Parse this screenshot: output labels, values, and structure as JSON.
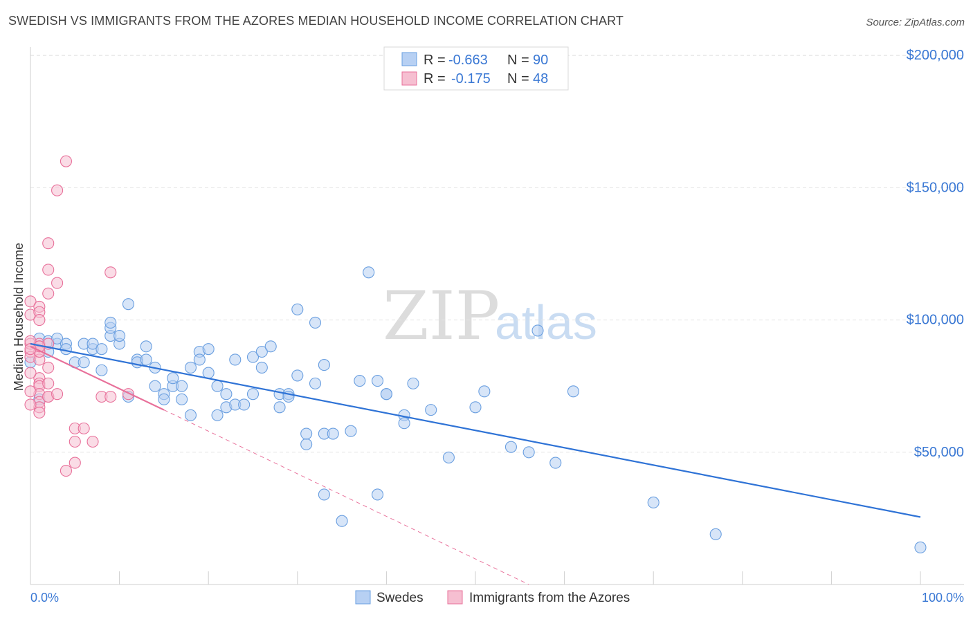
{
  "title": "SWEDISH VS IMMIGRANTS FROM THE AZORES MEDIAN HOUSEHOLD INCOME CORRELATION CHART",
  "source": "Source: ZipAtlas.com",
  "watermark": {
    "zip": "ZIP",
    "atlas": "atlas"
  },
  "colors": {
    "blue": "#6a9fe0",
    "blue_fill": "#b7d0f3",
    "blue_line": "#2f73d6",
    "pink": "#e8709a",
    "pink_fill": "#f6bfd1",
    "axis_text": "#3a78d4"
  },
  "legend_stats": [
    {
      "r_label": "R =",
      "r_value": "-0.663",
      "n_label": "N =",
      "n_value": "90",
      "color": "blue"
    },
    {
      "r_label": "R =",
      "r_value": "-0.175",
      "n_label": "N =",
      "n_value": "48",
      "color": "pink"
    }
  ],
  "chart_data": {
    "type": "scatter",
    "title": "SWEDISH VS IMMIGRANTS FROM THE AZORES MEDIAN HOUSEHOLD INCOME CORRELATION CHART",
    "xlabel": "",
    "ylabel": "Median Household Income",
    "x_tick_labels": [
      "0.0%",
      "100.0%"
    ],
    "y_ticks": [
      {
        "value": 50000,
        "label": "$50,000"
      },
      {
        "value": 100000,
        "label": "$100,000"
      },
      {
        "value": 150000,
        "label": "$150,000"
      },
      {
        "value": 200000,
        "label": "$200,000"
      }
    ],
    "xlim": [
      0,
      100
    ],
    "ylim": [
      0,
      205000
    ],
    "series": [
      {
        "name": "Swedes",
        "color": "blue",
        "trend": {
          "x0": 0,
          "y0": 91000,
          "x1": 100,
          "y1": 25500
        },
        "points": [
          [
            1,
            93000
          ],
          [
            2,
            92000
          ],
          [
            2,
            88000
          ],
          [
            3,
            91000
          ],
          [
            3,
            93000
          ],
          [
            4,
            91000
          ],
          [
            4,
            89000
          ],
          [
            5,
            84000
          ],
          [
            6,
            84000
          ],
          [
            6,
            91000
          ],
          [
            7,
            89000
          ],
          [
            7,
            91000
          ],
          [
            8,
            81000
          ],
          [
            8,
            89000
          ],
          [
            9,
            94000
          ],
          [
            9,
            97000
          ],
          [
            9,
            99000
          ],
          [
            10,
            91000
          ],
          [
            10,
            94000
          ],
          [
            11,
            106000
          ],
          [
            11,
            71000
          ],
          [
            12,
            85000
          ],
          [
            12,
            84000
          ],
          [
            13,
            85000
          ],
          [
            13,
            90000
          ],
          [
            14,
            82000
          ],
          [
            14,
            75000
          ],
          [
            15,
            72000
          ],
          [
            15,
            70000
          ],
          [
            16,
            75000
          ],
          [
            16,
            78000
          ],
          [
            17,
            75000
          ],
          [
            17,
            70000
          ],
          [
            18,
            82000
          ],
          [
            18,
            64000
          ],
          [
            19,
            88000
          ],
          [
            19,
            85000
          ],
          [
            20,
            80000
          ],
          [
            20,
            89000
          ],
          [
            21,
            64000
          ],
          [
            21,
            75000
          ],
          [
            22,
            67000
          ],
          [
            22,
            72000
          ],
          [
            23,
            68000
          ],
          [
            23,
            85000
          ],
          [
            24,
            68000
          ],
          [
            25,
            86000
          ],
          [
            25,
            72000
          ],
          [
            26,
            88000
          ],
          [
            26,
            82000
          ],
          [
            27,
            90000
          ],
          [
            28,
            72000
          ],
          [
            28,
            67000
          ],
          [
            29,
            72000
          ],
          [
            29,
            71000
          ],
          [
            30,
            79000
          ],
          [
            30,
            104000
          ],
          [
            31,
            53000
          ],
          [
            31,
            57000
          ],
          [
            32,
            99000
          ],
          [
            32,
            76000
          ],
          [
            33,
            83000
          ],
          [
            33,
            57000
          ],
          [
            33,
            34000
          ],
          [
            34,
            57000
          ],
          [
            35,
            24000
          ],
          [
            36,
            58000
          ],
          [
            37,
            77000
          ],
          [
            38,
            118000
          ],
          [
            39,
            34000
          ],
          [
            39,
            77000
          ],
          [
            40,
            72000
          ],
          [
            40,
            72000
          ],
          [
            42,
            64000
          ],
          [
            42,
            61000
          ],
          [
            43,
            76000
          ],
          [
            45,
            66000
          ],
          [
            47,
            48000
          ],
          [
            50,
            67000
          ],
          [
            51,
            73000
          ],
          [
            54,
            52000
          ],
          [
            56,
            50000
          ],
          [
            57,
            96000
          ],
          [
            59,
            46000
          ],
          [
            61,
            73000
          ],
          [
            70,
            31000
          ],
          [
            77,
            19000
          ],
          [
            100,
            14000
          ],
          [
            0,
            84000
          ],
          [
            1,
            70000
          ]
        ]
      },
      {
        "name": "Immigrants from the Azores",
        "color": "pink",
        "trend": {
          "x0": 0,
          "y0": 90000,
          "x1": 15,
          "y1": 66000
        },
        "trend_dashed": {
          "x0": 15,
          "y0": 66000,
          "x1": 56,
          "y1": 0
        },
        "points": [
          [
            0,
            88000
          ],
          [
            0,
            91000
          ],
          [
            0,
            86000
          ],
          [
            0,
            107000
          ],
          [
            0,
            102000
          ],
          [
            1,
            105000
          ],
          [
            1,
            103000
          ],
          [
            1,
            100000
          ],
          [
            1,
            91000
          ],
          [
            1,
            78000
          ],
          [
            1,
            76000
          ],
          [
            1,
            75000
          ],
          [
            1,
            72000
          ],
          [
            1,
            69000
          ],
          [
            1,
            67000
          ],
          [
            1,
            65000
          ],
          [
            1,
            90000
          ],
          [
            1,
            88000
          ],
          [
            2,
            82000
          ],
          [
            2,
            91000
          ],
          [
            2,
            71000
          ],
          [
            2,
            119000
          ],
          [
            2,
            129000
          ],
          [
            2,
            110000
          ],
          [
            2,
            71000
          ],
          [
            3,
            149000
          ],
          [
            3,
            114000
          ],
          [
            3,
            72000
          ],
          [
            4,
            43000
          ],
          [
            4,
            160000
          ],
          [
            5,
            46000
          ],
          [
            5,
            54000
          ],
          [
            5,
            59000
          ],
          [
            6,
            59000
          ],
          [
            7,
            54000
          ],
          [
            8,
            71000
          ],
          [
            9,
            118000
          ],
          [
            9,
            71000
          ],
          [
            11,
            72000
          ],
          [
            0,
            73000
          ],
          [
            0,
            80000
          ],
          [
            0,
            92000
          ],
          [
            1,
            85000
          ],
          [
            2,
            76000
          ],
          [
            1,
            88000
          ],
          [
            1,
            90000
          ],
          [
            0,
            89000
          ],
          [
            0,
            68000
          ]
        ]
      }
    ],
    "legend": [
      "Swedes",
      "Immigrants from the Azores"
    ],
    "legend_position": "bottom"
  }
}
